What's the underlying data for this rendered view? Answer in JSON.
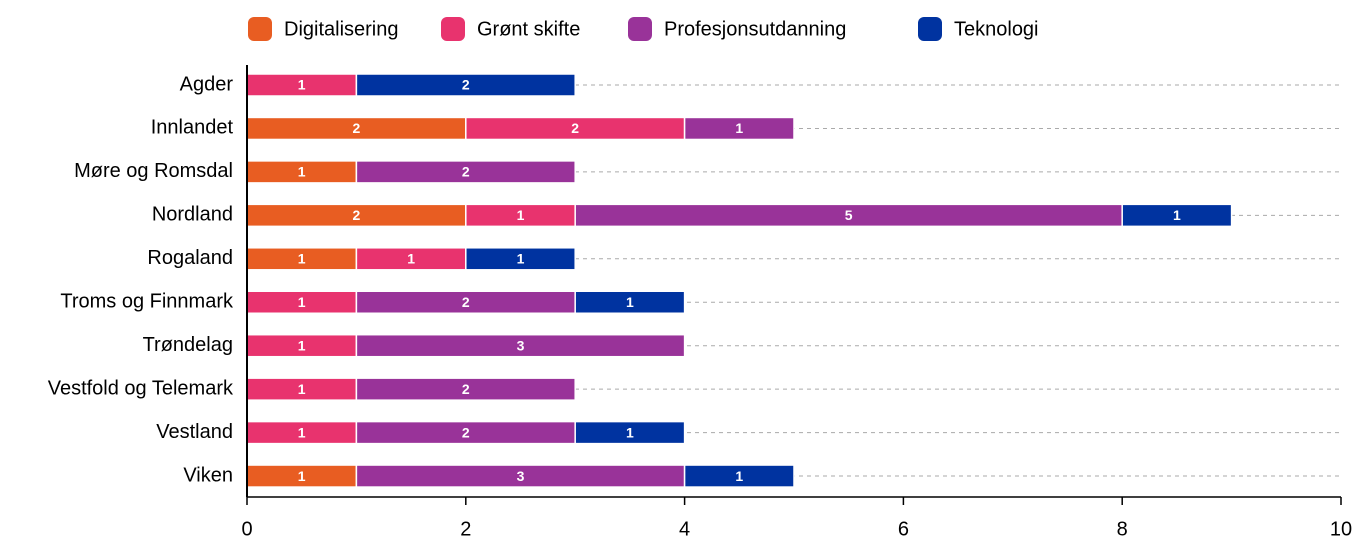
{
  "chart_data": {
    "type": "bar",
    "orientation": "horizontal",
    "stacked": true,
    "categories": [
      "Agder",
      "Innlandet",
      "Møre og Romsdal",
      "Nordland",
      "Rogaland",
      "Troms og Finnmark",
      "Trøndelag",
      "Vestfold og Telemark",
      "Vestland",
      "Viken"
    ],
    "series": [
      {
        "name": "Digitalisering",
        "color": "#e85d22",
        "values": [
          null,
          2,
          1,
          2,
          1,
          null,
          null,
          null,
          null,
          1
        ]
      },
      {
        "name": "Grønt skifte",
        "color": "#e8336e",
        "values": [
          1,
          2,
          null,
          1,
          1,
          1,
          1,
          1,
          1,
          null
        ]
      },
      {
        "name": "Profesjonsutdanning",
        "color": "#993399",
        "values": [
          null,
          1,
          2,
          5,
          null,
          2,
          3,
          2,
          2,
          3
        ]
      },
      {
        "name": "Teknologi",
        "color": "#0033a0",
        "values": [
          2,
          null,
          null,
          1,
          1,
          1,
          null,
          null,
          1,
          1
        ]
      }
    ],
    "xlim": [
      0,
      10
    ],
    "xticks": [
      0,
      2,
      4,
      6,
      8,
      10
    ],
    "legend": "top"
  }
}
